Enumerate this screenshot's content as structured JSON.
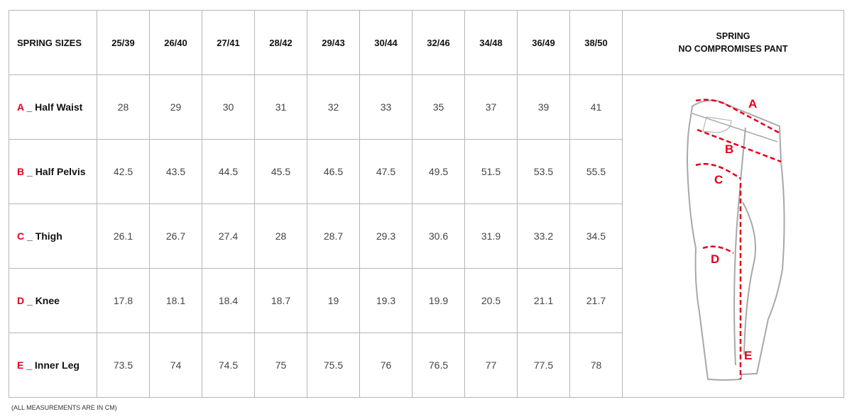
{
  "header": {
    "title": "SPRING SIZES",
    "sizes": [
      "25/39",
      "26/40",
      "27/41",
      "28/42",
      "29/43",
      "30/44",
      "32/46",
      "34/48",
      "36/49",
      "38/50"
    ],
    "diagram_title_line1": "SPRING",
    "diagram_title_line2": "NO COMPROMISES PANT"
  },
  "rows": [
    {
      "letter": "A",
      "name": "_ Half Waist",
      "values": [
        "28",
        "29",
        "30",
        "31",
        "32",
        "33",
        "35",
        "37",
        "39",
        "41"
      ]
    },
    {
      "letter": "B",
      "name": "_ Half Pelvis",
      "values": [
        "42.5",
        "43.5",
        "44.5",
        "45.5",
        "46.5",
        "47.5",
        "49.5",
        "51.5",
        "53.5",
        "55.5"
      ]
    },
    {
      "letter": "C",
      "name": "_ Thigh",
      "values": [
        "26.1",
        "26.7",
        "27.4",
        "28",
        "28.7",
        "29.3",
        "30.6",
        "31.9",
        "33.2",
        "34.5"
      ]
    },
    {
      "letter": "D",
      "name": "_ Knee",
      "values": [
        "17.8",
        "18.1",
        "18.4",
        "18.7",
        "19",
        "19.3",
        "19.9",
        "20.5",
        "21.1",
        "21.7"
      ]
    },
    {
      "letter": "E",
      "name": "_ Inner Leg",
      "values": [
        "73.5",
        "74",
        "74.5",
        "75",
        "75.5",
        "76",
        "76.5",
        "77",
        "77.5",
        "78"
      ]
    }
  ],
  "diagram_labels": [
    "A",
    "B",
    "C",
    "D",
    "E"
  ],
  "footnote": "(ALL MEASUREMENTS ARE IN CM)",
  "colors": {
    "accent": "#e3001b",
    "grid": "#b5b5b5"
  }
}
